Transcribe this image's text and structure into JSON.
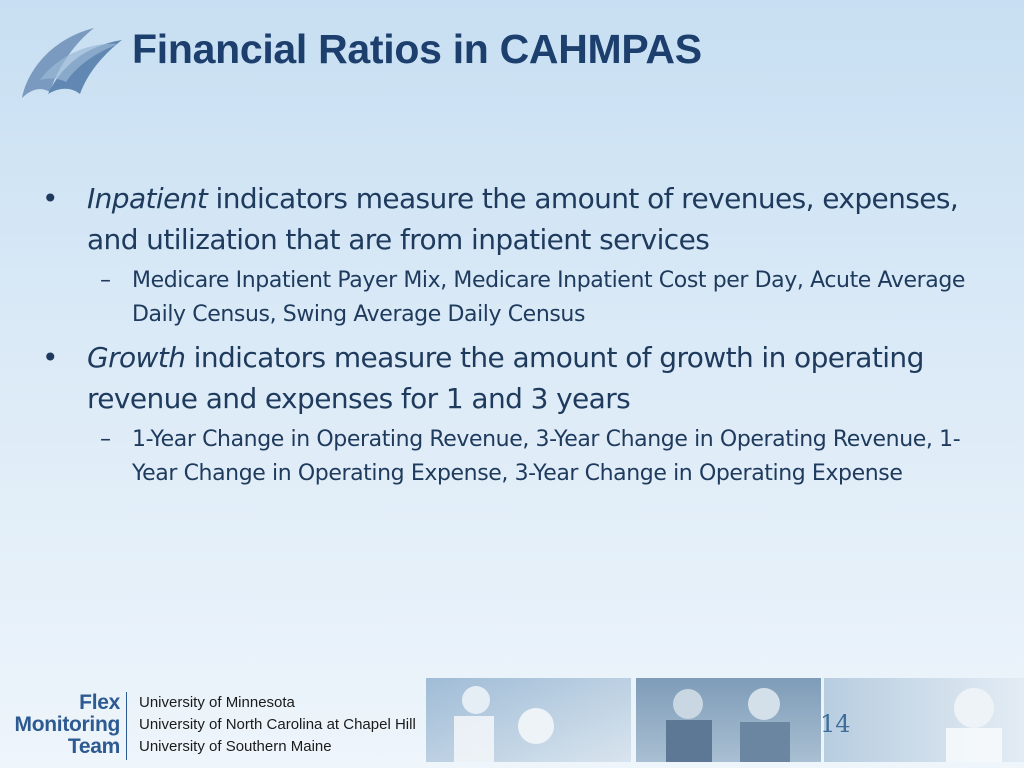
{
  "slide": {
    "title": "Financial Ratios in CAHMPAS",
    "page_number": "14"
  },
  "bullets": [
    {
      "emphasis": "Inpatient",
      "text": " indicators measure the amount of revenues, expenses, and utilization that are from inpatient services",
      "sub": "Medicare Inpatient Payer Mix, Medicare Inpatient Cost per Day, Acute Average Daily Census, Swing Average Daily Census"
    },
    {
      "emphasis": "Growth",
      "text": " indicators measure the amount of growth in operating revenue and expenses for 1 and 3 years",
      "sub": "1-Year Change in Operating Revenue, 3-Year Change in Operating Revenue, 1-Year Change in Operating Expense, 3-Year Change in Operating Expense"
    }
  ],
  "footer": {
    "org_lines": [
      "Flex",
      "Monitoring",
      "Team"
    ],
    "universities": [
      "University of Minnesota",
      "University of North Carolina at Chapel Hill",
      "University of Southern Maine"
    ]
  },
  "colors": {
    "title": "#1d3f6e",
    "body_text": "#1e3a5c",
    "footer_brand": "#2d5a91"
  },
  "icons": {
    "logo": "swoosh-logo-icon",
    "bullet": "bullet-dot",
    "sub_bullet": "en-dash"
  }
}
